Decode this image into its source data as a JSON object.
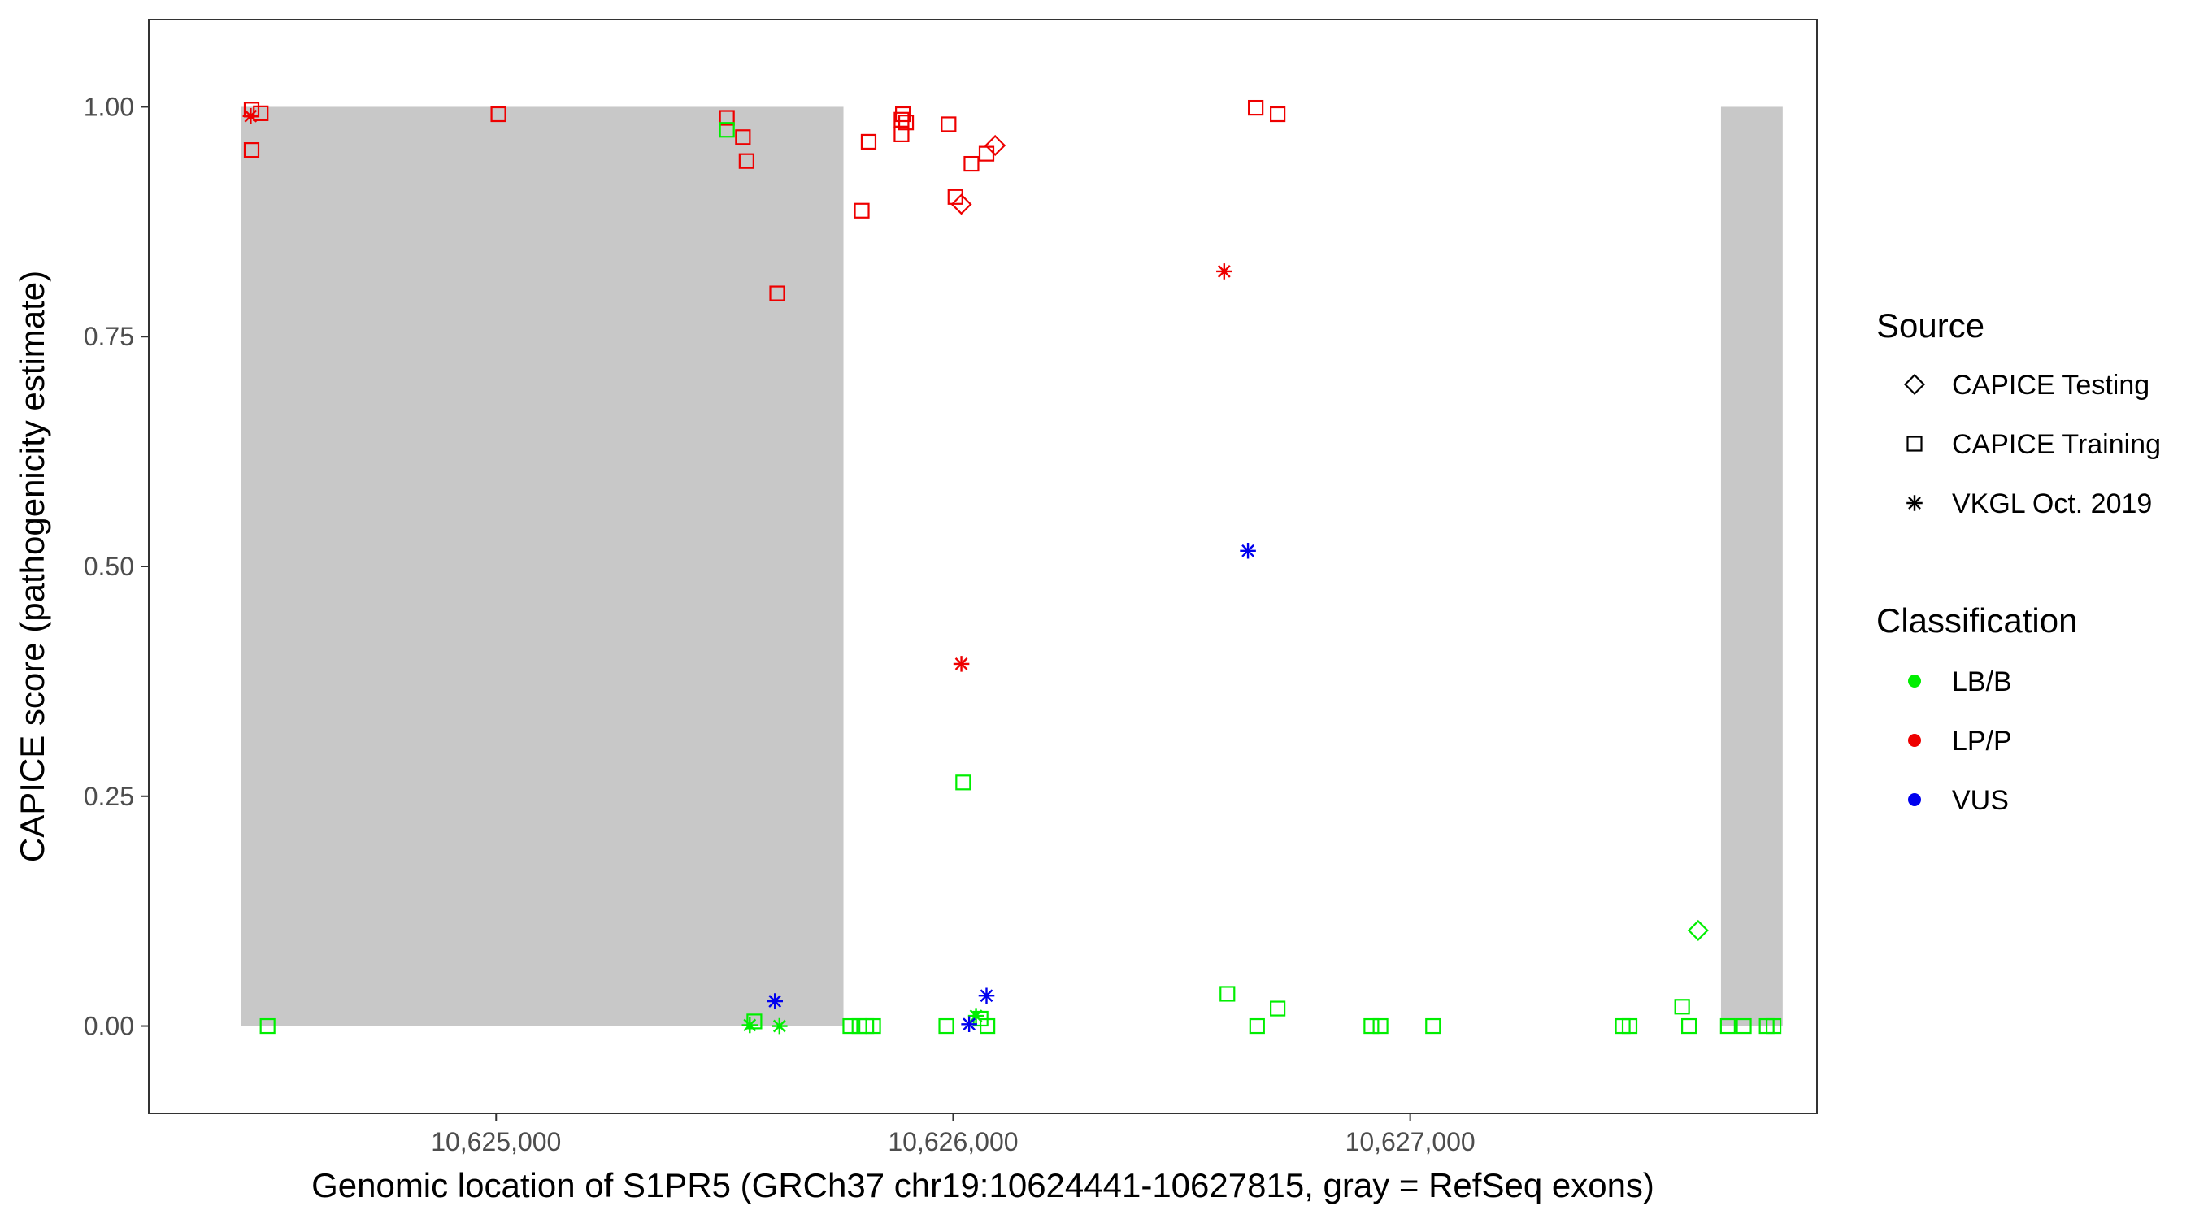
{
  "chart_data": {
    "type": "scatter",
    "title": "",
    "xlabel": "Genomic location of S1PR5 (GRCh37 chr19:10624441-10627815, gray = RefSeq exons)",
    "ylabel": "CAPICE score (pathogenicity estimate)",
    "xlim": [
      10624240,
      10627890
    ],
    "ylim": [
      -0.095,
      1.095
    ],
    "x_ticks": [
      10625000,
      10626000,
      10627000
    ],
    "x_tick_labels": [
      "10,625,000",
      "10,626,000",
      "10,627,000"
    ],
    "y_ticks": [
      0,
      0.25,
      0.5,
      0.75,
      1
    ],
    "y_tick_labels": [
      "0.00",
      "0.25",
      "0.50",
      "0.75",
      "1.00"
    ],
    "grid": false,
    "exons": [
      {
        "start": 10624441,
        "end": 10625760
      },
      {
        "start": 10627680,
        "end": 10627815
      }
    ],
    "legend": {
      "placement": "right",
      "source_title": "Source",
      "source_items": [
        {
          "label": "CAPICE Testing",
          "shape": "diamond"
        },
        {
          "label": "CAPICE Training",
          "shape": "square"
        },
        {
          "label": "VKGL Oct. 2019",
          "shape": "asterisk"
        }
      ],
      "class_title": "Classification",
      "class_items": [
        {
          "label": "LB/B",
          "color": "#00EE00"
        },
        {
          "label": "LP/P",
          "color": "#EE0000"
        },
        {
          "label": "VUS",
          "color": "#0000EE"
        }
      ]
    },
    "colors": {
      "LB/B": "#00EE00",
      "LP/P": "#EE0000",
      "VUS": "#0000EE"
    },
    "series": [
      {
        "source": "CAPICE Training",
        "class": "LP/P",
        "points": [
          [
            10624465,
            0.997
          ],
          [
            10624485,
            0.993
          ],
          [
            10624465,
            0.953
          ],
          [
            10625005,
            0.992
          ],
          [
            10625505,
            0.988
          ],
          [
            10625540,
            0.967
          ],
          [
            10625548,
            0.941
          ],
          [
            10625615,
            0.797
          ],
          [
            10625800,
            0.887
          ],
          [
            10625815,
            0.962
          ],
          [
            10625890,
            0.992
          ],
          [
            10625887,
            0.986
          ],
          [
            10625897,
            0.983
          ],
          [
            10625887,
            0.97
          ],
          [
            10625990,
            0.981
          ],
          [
            10626005,
            0.902
          ],
          [
            10626040,
            0.938
          ],
          [
            10626073,
            0.949
          ],
          [
            10626662,
            0.999
          ],
          [
            10626710,
            0.992
          ]
        ]
      },
      {
        "source": "CAPICE Training",
        "class": "LB/B",
        "points": [
          [
            10625505,
            0.975
          ],
          [
            10626022,
            0.265
          ],
          [
            10624500,
            0
          ],
          [
            10625565,
            0.005
          ],
          [
            10625775,
            0
          ],
          [
            10625795,
            0
          ],
          [
            10625810,
            0
          ],
          [
            10625825,
            0
          ],
          [
            10625985,
            0
          ],
          [
            10626060,
            0.008
          ],
          [
            10626075,
            0
          ],
          [
            10626600,
            0.035
          ],
          [
            10626665,
            0
          ],
          [
            10626710,
            0.019
          ],
          [
            10626915,
            0
          ],
          [
            10626935,
            0
          ],
          [
            10627050,
            0
          ],
          [
            10627465,
            0
          ],
          [
            10627480,
            0
          ],
          [
            10627595,
            0.021
          ],
          [
            10627610,
            0
          ],
          [
            10627695,
            0
          ],
          [
            10627730,
            0
          ],
          [
            10627780,
            0
          ],
          [
            10627795,
            0
          ]
        ]
      },
      {
        "source": "CAPICE Testing",
        "class": "LP/P",
        "points": [
          [
            10626092,
            0.958
          ],
          [
            10626018,
            0.894
          ]
        ]
      },
      {
        "source": "CAPICE Testing",
        "class": "LB/B",
        "points": [
          [
            10627630,
            0.104
          ]
        ]
      },
      {
        "source": "VKGL Oct. 2019",
        "class": "LP/P",
        "points": [
          [
            10624463,
            0.99
          ],
          [
            10626593,
            0.821
          ],
          [
            10626018,
            0.394
          ]
        ]
      },
      {
        "source": "VKGL Oct. 2019",
        "class": "LB/B",
        "points": [
          [
            10625555,
            0.001
          ],
          [
            10625620,
            0
          ],
          [
            10626050,
            0.011
          ]
        ]
      },
      {
        "source": "VKGL Oct. 2019",
        "class": "VUS",
        "points": [
          [
            10626645,
            0.517
          ],
          [
            10625610,
            0.027
          ],
          [
            10626073,
            0.033
          ],
          [
            10626035,
            0.002
          ]
        ]
      }
    ]
  }
}
